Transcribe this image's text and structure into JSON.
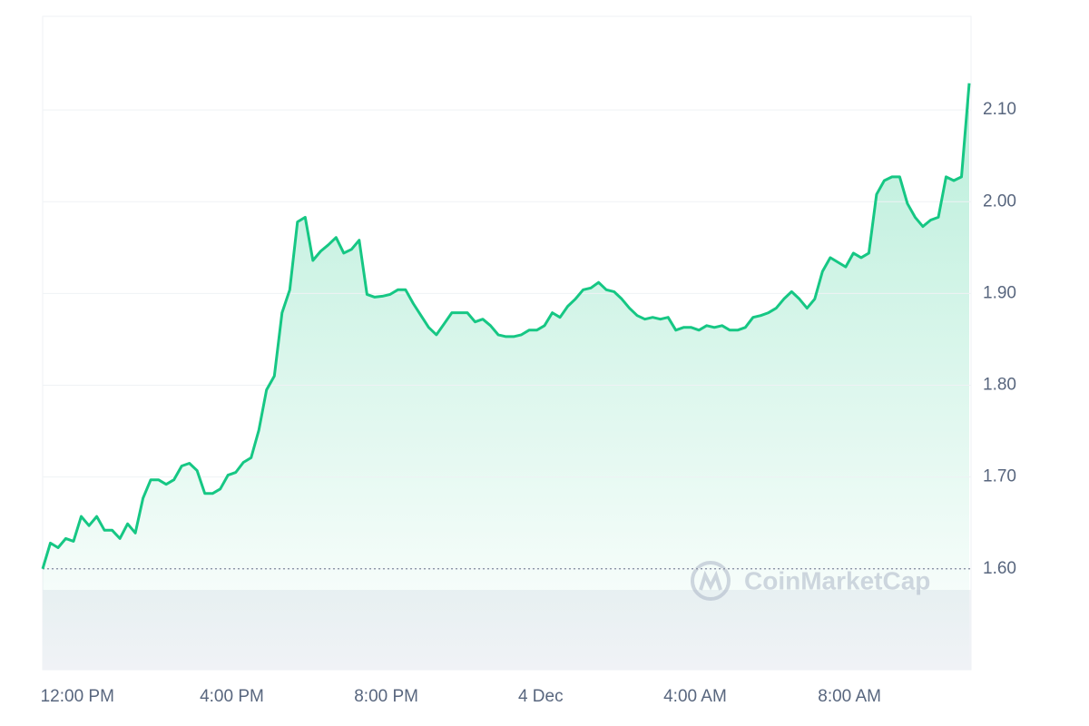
{
  "chart_data": {
    "type": "line",
    "x": [
      11.1,
      11.3,
      11.5,
      11.7,
      11.9,
      12.1,
      12.3,
      12.5,
      12.7,
      12.9,
      13.1,
      13.3,
      13.5,
      13.7,
      13.9,
      14.1,
      14.3,
      14.5,
      14.7,
      14.9,
      15.1,
      15.3,
      15.5,
      15.7,
      15.9,
      16.1,
      16.3,
      16.5,
      16.7,
      16.9,
      17.1,
      17.3,
      17.5,
      17.7,
      17.9,
      18.1,
      18.3,
      18.5,
      18.7,
      18.9,
      19.1,
      19.3,
      19.5,
      19.7,
      19.9,
      20.1,
      20.3,
      20.5,
      20.7,
      20.9,
      21.1,
      21.3,
      21.5,
      21.7,
      21.9,
      22.1,
      22.3,
      22.5,
      22.7,
      22.9,
      23.1,
      23.3,
      23.5,
      23.7,
      23.9,
      24.1,
      24.3,
      24.5,
      24.7,
      24.9,
      25.1,
      25.3,
      25.5,
      25.7,
      25.9,
      26.1,
      26.3,
      26.5,
      26.7,
      26.9,
      27.1,
      27.3,
      27.5,
      27.7,
      27.9,
      28.1,
      28.3,
      28.5,
      28.7,
      28.9,
      29.1,
      29.3,
      29.5,
      29.7,
      29.9,
      30.1,
      30.3,
      30.5,
      30.7,
      30.9,
      31.1,
      31.3,
      31.5,
      31.7,
      31.9,
      32.1,
      32.3,
      32.5,
      32.7,
      32.9,
      33.1,
      33.3,
      33.5,
      33.7,
      33.9,
      34.1,
      34.3,
      34.5,
      34.7,
      34.9,
      35.1
    ],
    "values": [
      1.6,
      1.628,
      1.623,
      1.633,
      1.63,
      1.657,
      1.647,
      1.657,
      1.642,
      1.642,
      1.633,
      1.649,
      1.639,
      1.677,
      1.697,
      1.697,
      1.692,
      1.697,
      1.712,
      1.715,
      1.707,
      1.682,
      1.682,
      1.687,
      1.702,
      1.705,
      1.716,
      1.721,
      1.751,
      1.795,
      1.81,
      1.879,
      1.904,
      1.978,
      1.983,
      1.936,
      1.946,
      1.953,
      1.961,
      1.944,
      1.948,
      1.958,
      1.899,
      1.896,
      1.897,
      1.899,
      1.904,
      1.904,
      1.889,
      1.876,
      1.863,
      1.855,
      1.867,
      1.879,
      1.879,
      1.879,
      1.869,
      1.872,
      1.865,
      1.855,
      1.853,
      1.853,
      1.855,
      1.86,
      1.86,
      1.865,
      1.879,
      1.874,
      1.886,
      1.894,
      1.904,
      1.906,
      1.912,
      1.904,
      1.902,
      1.894,
      1.884,
      1.876,
      1.872,
      1.874,
      1.872,
      1.874,
      1.86,
      1.863,
      1.863,
      1.86,
      1.865,
      1.863,
      1.865,
      1.86,
      1.86,
      1.863,
      1.874,
      1.876,
      1.879,
      1.884,
      1.894,
      1.902,
      1.894,
      1.884,
      1.894,
      1.924,
      1.939,
      1.934,
      1.929,
      1.944,
      1.939,
      1.944,
      2.008,
      2.023,
      2.027,
      2.027,
      1.998,
      1.983,
      1.973,
      1.98,
      1.983,
      2.027,
      2.023,
      2.027,
      2.129
    ],
    "color": "#16c784",
    "xlim": [
      11.1,
      35.1
    ],
    "ylim": [
      1.49,
      2.2
    ],
    "xticks": [
      {
        "value": 12,
        "label": "12:00 PM"
      },
      {
        "value": 16,
        "label": "4:00 PM"
      },
      {
        "value": 20,
        "label": "8:00 PM"
      },
      {
        "value": 24,
        "label": "4 Dec"
      },
      {
        "value": 28,
        "label": "4:00 AM"
      },
      {
        "value": 32,
        "label": "8:00 AM"
      }
    ],
    "yticks": [
      {
        "value": 1.6,
        "label": "1.60"
      },
      {
        "value": 1.7,
        "label": "1.70"
      },
      {
        "value": 1.8,
        "label": "1.80"
      },
      {
        "value": 1.9,
        "label": "1.90"
      },
      {
        "value": 2.0,
        "label": "2.00"
      },
      {
        "value": 2.1,
        "label": "2.10"
      }
    ],
    "grid": true,
    "watermark": "CoinMarketCap"
  }
}
